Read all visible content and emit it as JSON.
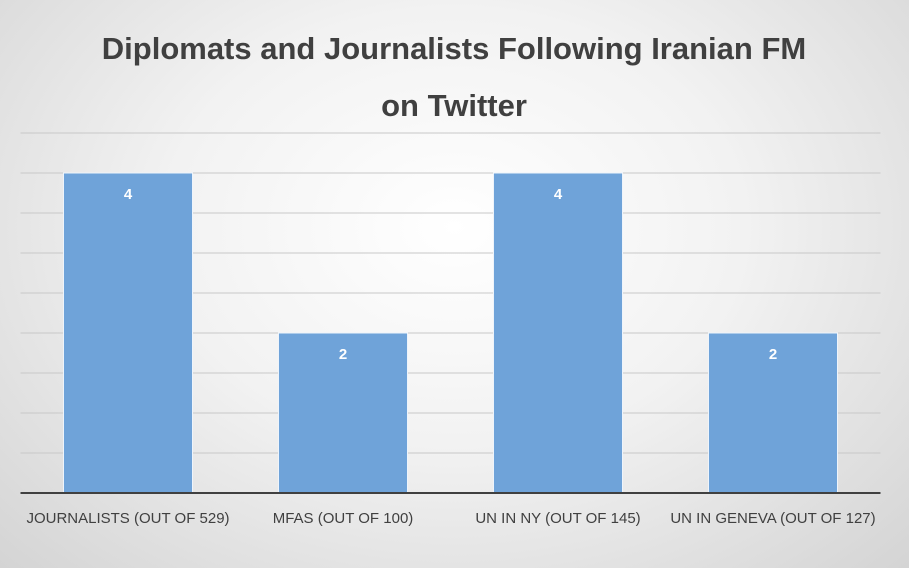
{
  "chart_data": {
    "type": "bar",
    "title": "Diplomats and Journalists Following Iranian FM on Twitter",
    "categories": [
      "JOURNALISTS (OUT OF 529)",
      "MFAS (OUT OF 100)",
      "UN IN NY (OUT OF 145)",
      "UN IN GENEVA  (OUT OF 127)"
    ],
    "values": [
      4,
      2,
      4,
      2
    ],
    "color": "#6fa3d9",
    "ylim": [
      0,
      4.5
    ],
    "yticks": [
      0,
      0.5,
      1,
      1.5,
      2,
      2.5,
      3,
      3.5,
      4,
      4.5
    ],
    "grid": true
  }
}
